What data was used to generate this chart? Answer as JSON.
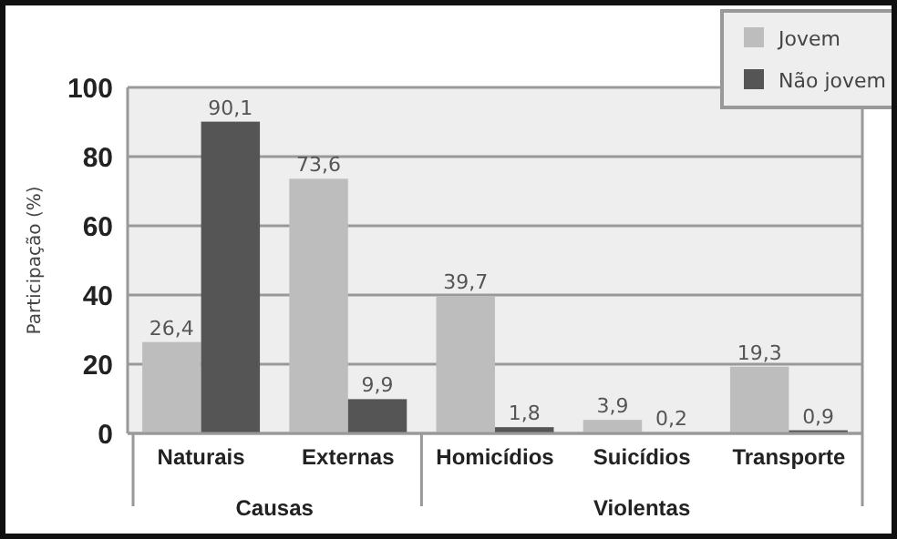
{
  "chart_data": {
    "type": "bar",
    "ylabel": "Participação (%)",
    "categories": [
      "Naturais",
      "Externas",
      "Homicídios",
      "Suicídios",
      "Transporte"
    ],
    "series": [
      {
        "name": "Jovem",
        "color": "#bdbdbd",
        "values": [
          26.4,
          73.6,
          39.7,
          3.9,
          19.3
        ]
      },
      {
        "name": "Não jovem",
        "color": "#555555",
        "values": [
          90.1,
          9.9,
          1.8,
          0.2,
          0.9
        ]
      }
    ],
    "value_labels": [
      [
        "26,4",
        "73,6",
        "39,7",
        "3,9",
        "19,3"
      ],
      [
        "90,1",
        "9,9",
        "1,8",
        "0,2",
        "0,9"
      ]
    ],
    "annotations": [
      "Causas",
      "Violentas"
    ],
    "ylim": [
      0,
      100
    ],
    "yticks": [
      0,
      20,
      40,
      60,
      80,
      100
    ],
    "grid": "y",
    "legend": "top right"
  }
}
